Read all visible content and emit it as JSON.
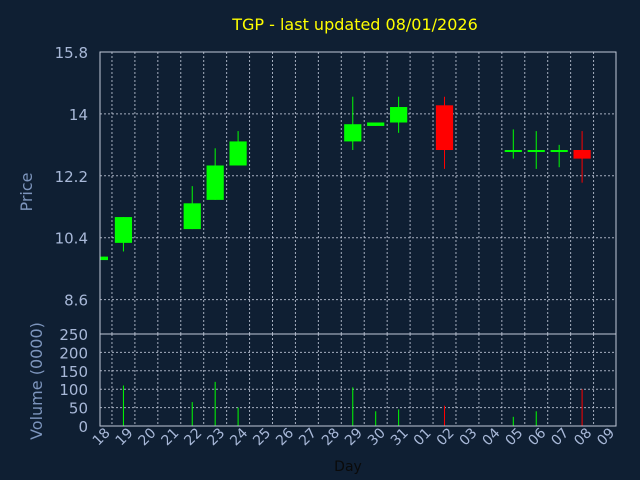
{
  "chart_data": [
    {
      "type": "candlestick",
      "title": "TGP - last updated 08/01/2026",
      "ylabel": "Price",
      "ylim": [
        7.6,
        15.8
      ],
      "yticks": [
        8.6,
        10.4,
        12.2,
        14,
        15.8
      ],
      "grid": true,
      "x_categories": [
        "18",
        "19",
        "20",
        "21",
        "22",
        "23",
        "24",
        "25",
        "26",
        "27",
        "28",
        "29",
        "30",
        "31",
        "01",
        "02",
        "03",
        "04",
        "05",
        "06",
        "07",
        "08",
        "09"
      ],
      "candles": [
        {
          "day": "18",
          "open": 9.75,
          "high": 9.85,
          "low": 9.75,
          "close": 9.85
        },
        {
          "day": "19",
          "open": 10.25,
          "high": 11.0,
          "low": 10.0,
          "close": 11.0
        },
        {
          "day": "22",
          "open": 10.65,
          "high": 11.9,
          "low": 10.65,
          "close": 11.4
        },
        {
          "day": "23",
          "open": 11.5,
          "high": 13.0,
          "low": 11.5,
          "close": 12.5
        },
        {
          "day": "24",
          "open": 12.5,
          "high": 13.5,
          "low": 12.5,
          "close": 13.2
        },
        {
          "day": "29",
          "open": 13.2,
          "high": 14.5,
          "low": 12.95,
          "close": 13.7
        },
        {
          "day": "30",
          "open": 13.65,
          "high": 13.75,
          "low": 13.65,
          "close": 13.75
        },
        {
          "day": "31",
          "open": 13.75,
          "high": 14.5,
          "low": 13.45,
          "close": 14.2
        },
        {
          "day": "02",
          "open": 14.25,
          "high": 14.5,
          "low": 12.4,
          "close": 12.95
        },
        {
          "day": "05",
          "open": 12.9,
          "high": 13.55,
          "low": 12.7,
          "close": 12.95
        },
        {
          "day": "06",
          "open": 12.9,
          "high": 13.5,
          "low": 12.4,
          "close": 12.95
        },
        {
          "day": "07",
          "open": 12.9,
          "high": 13.1,
          "low": 12.45,
          "close": 12.95
        },
        {
          "day": "08",
          "open": 12.95,
          "high": 13.5,
          "low": 12.0,
          "close": 12.7
        }
      ],
      "colors": {
        "up": "#00ff00",
        "down": "#ff0000"
      }
    },
    {
      "type": "bar",
      "ylabel": "Volume (0000)",
      "xlabel": "Day",
      "ylim": [
        0,
        250
      ],
      "yticks": [
        0,
        50,
        100,
        150,
        200,
        250
      ],
      "grid": true,
      "categories": [
        "18",
        "19",
        "20",
        "21",
        "22",
        "23",
        "24",
        "25",
        "26",
        "27",
        "28",
        "29",
        "30",
        "31",
        "01",
        "02",
        "03",
        "04",
        "05",
        "06",
        "07",
        "08",
        "09"
      ],
      "volumes": [
        {
          "day": "19",
          "value": 110,
          "color": "#00ff00"
        },
        {
          "day": "22",
          "value": 65,
          "color": "#00ff00"
        },
        {
          "day": "23",
          "value": 120,
          "color": "#00ff00"
        },
        {
          "day": "24",
          "value": 50,
          "color": "#00ff00"
        },
        {
          "day": "29",
          "value": 105,
          "color": "#00ff00"
        },
        {
          "day": "30",
          "value": 40,
          "color": "#00ff00"
        },
        {
          "day": "31",
          "value": 45,
          "color": "#00ff00"
        },
        {
          "day": "02",
          "value": 55,
          "color": "#ff0000"
        },
        {
          "day": "05",
          "value": 25,
          "color": "#00ff00"
        },
        {
          "day": "06",
          "value": 40,
          "color": "#00ff00"
        },
        {
          "day": "08",
          "value": 100,
          "color": "#ff0000"
        }
      ]
    }
  ],
  "colors": {
    "background": "#0f1f33",
    "title": "#ffff00",
    "axis_text": "#7d95bd",
    "tick_text": "#a8b8d8",
    "grid": "#c0c8d8"
  }
}
